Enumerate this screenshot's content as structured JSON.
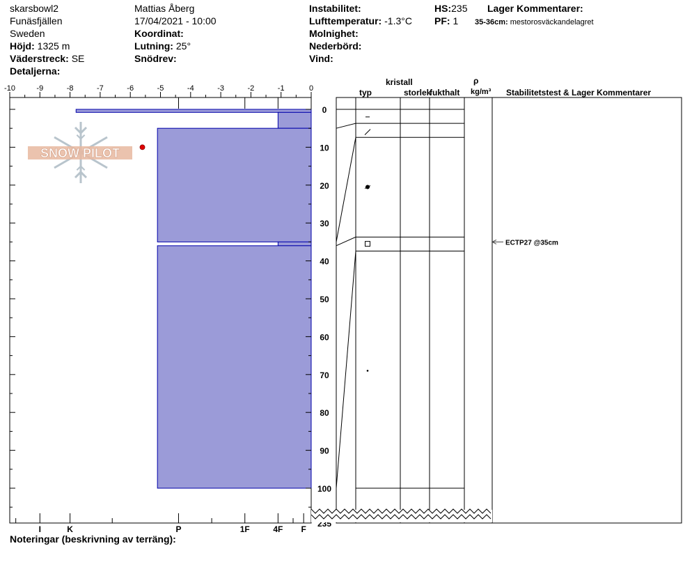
{
  "header": {
    "site": "skarsbowl2",
    "area": "Funäsfjällen",
    "country": "Sweden",
    "elevation_label": "Höjd:",
    "elevation_value": "1325 m",
    "aspect_label": "Väderstreck:",
    "aspect_value": "SE",
    "details_label": "Detaljerna:",
    "observer": "Mattias Åberg",
    "datetime": "17/04/2021 - 10:00",
    "coord_label": "Koordinat:",
    "slope_label": "Lutning:",
    "slope_value": "25°",
    "drift_label": "Snödrev:",
    "instability_label": "Instabilitet:",
    "air_temp_label": "Lufttemperatur:",
    "air_temp_value": "-1.3°C",
    "sky_label": "Molnighet:",
    "precip_label": "Nederbörd:",
    "wind_label": "Vind:",
    "hs_label": "HS:",
    "hs_value": "235",
    "pf_label": "PF:",
    "pf_value": "1",
    "layer_comments_label": "Lager Kommentarer:",
    "layer_comment_range": "35-36cm:",
    "layer_comment_text": "mestorosväckandelagret"
  },
  "columns": {
    "crystal": "kristall",
    "type": "typ",
    "size": "storlek",
    "moisture": "fukthalt",
    "rho": "ρ",
    "density_unit": "kg/m³",
    "stability": "Stabilitetstest & Lager Kommentarer"
  },
  "logo_text": "SNOW PILOT",
  "notes_label": "Noteringar (beskrivning av terräng):",
  "chart_data": {
    "type": "bar",
    "temperature_axis": {
      "ticks": [
        -10,
        -9,
        -8,
        -7,
        -6,
        -5,
        -4,
        -3,
        -2,
        -1,
        0
      ],
      "range": [
        -10,
        0
      ]
    },
    "depth_axis": {
      "ticks": [
        0,
        10,
        20,
        30,
        40,
        50,
        60,
        70,
        80,
        90,
        100
      ],
      "break_label": "235",
      "range_cm": [
        0,
        100
      ]
    },
    "hardness_ticks": [
      {
        "label": "I",
        "pos": 9
      },
      {
        "label": "K",
        "pos": 8
      },
      {
        "label": "P",
        "pos": 4.4
      },
      {
        "label": "1F",
        "pos": 2.2
      },
      {
        "label": "4F",
        "pos": 1.1
      },
      {
        "label": "F",
        "pos": 0.25
      }
    ],
    "layers": [
      {
        "top": 0,
        "bottom": 0.8,
        "hardness": 7.8
      },
      {
        "top": 0.8,
        "bottom": 5,
        "hardness": 1.1
      },
      {
        "top": 5,
        "bottom": 35,
        "hardness": 5.1
      },
      {
        "top": 35,
        "bottom": 36,
        "hardness": 1.1
      },
      {
        "top": 36,
        "bottom": 100,
        "hardness": 5.1
      }
    ],
    "temperature_points": [
      {
        "temp": -5.6,
        "depth": 10
      }
    ],
    "layer_lines": [
      0,
      3.7,
      7.4,
      33.7,
      37.4,
      100
    ],
    "crystal_symbols": [
      {
        "depth": 2,
        "symbol": "dash"
      },
      {
        "depth": 6,
        "symbol": "slash"
      },
      {
        "depth": 20.5,
        "symbol": "ring"
      },
      {
        "depth": 35.5,
        "symbol": "square"
      },
      {
        "depth": 69,
        "symbol": "dot"
      }
    ],
    "stability_tests": [
      {
        "depth": 35,
        "label": "ECTP27 @35cm"
      }
    ],
    "colors": {
      "layer_fill": "#9b9bd8",
      "layer_stroke": "#0000aa",
      "temp_point": "#e00000"
    }
  }
}
